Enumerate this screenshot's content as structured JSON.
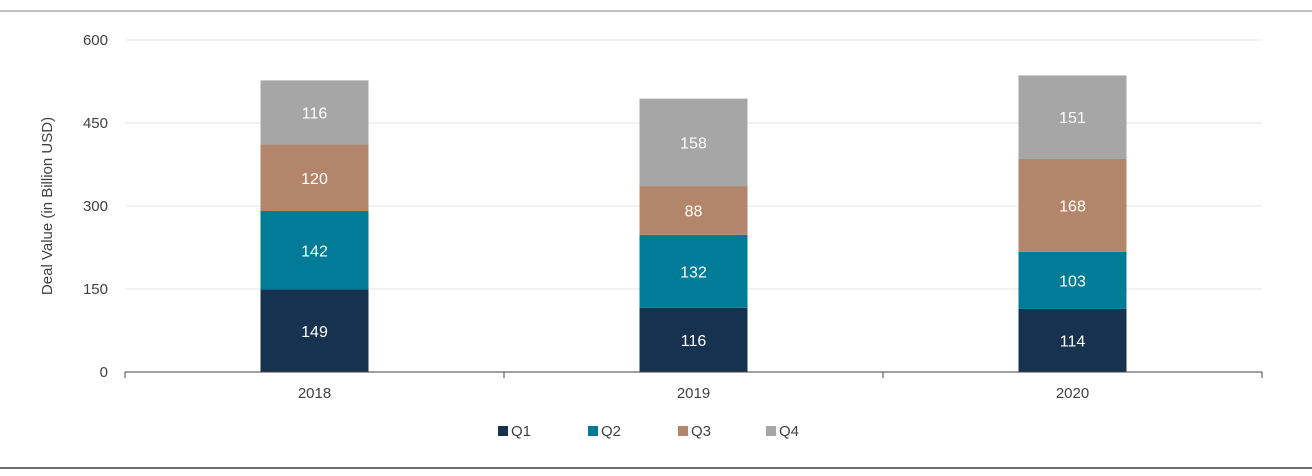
{
  "chart_data": {
    "type": "bar",
    "stacked": true,
    "categories": [
      "2018",
      "2019",
      "2020"
    ],
    "series": [
      {
        "name": "Q1",
        "color": "#17324f",
        "values": [
          149,
          116,
          114
        ]
      },
      {
        "name": "Q2",
        "color": "#007c99",
        "values": [
          142,
          132,
          103
        ]
      },
      {
        "name": "Q3",
        "color": "#b3866c",
        "values": [
          120,
          88,
          168
        ]
      },
      {
        "name": "Q4",
        "color": "#a6a6a6",
        "values": [
          116,
          158,
          151
        ]
      }
    ],
    "ylabel": "Deal Value (in Billion USD)",
    "xlabel": "",
    "title": "",
    "ylim": [
      0,
      600
    ],
    "yticks": [
      "0",
      "150",
      "300",
      "450",
      "600"
    ],
    "grid": true,
    "legend": "bottom-center"
  }
}
